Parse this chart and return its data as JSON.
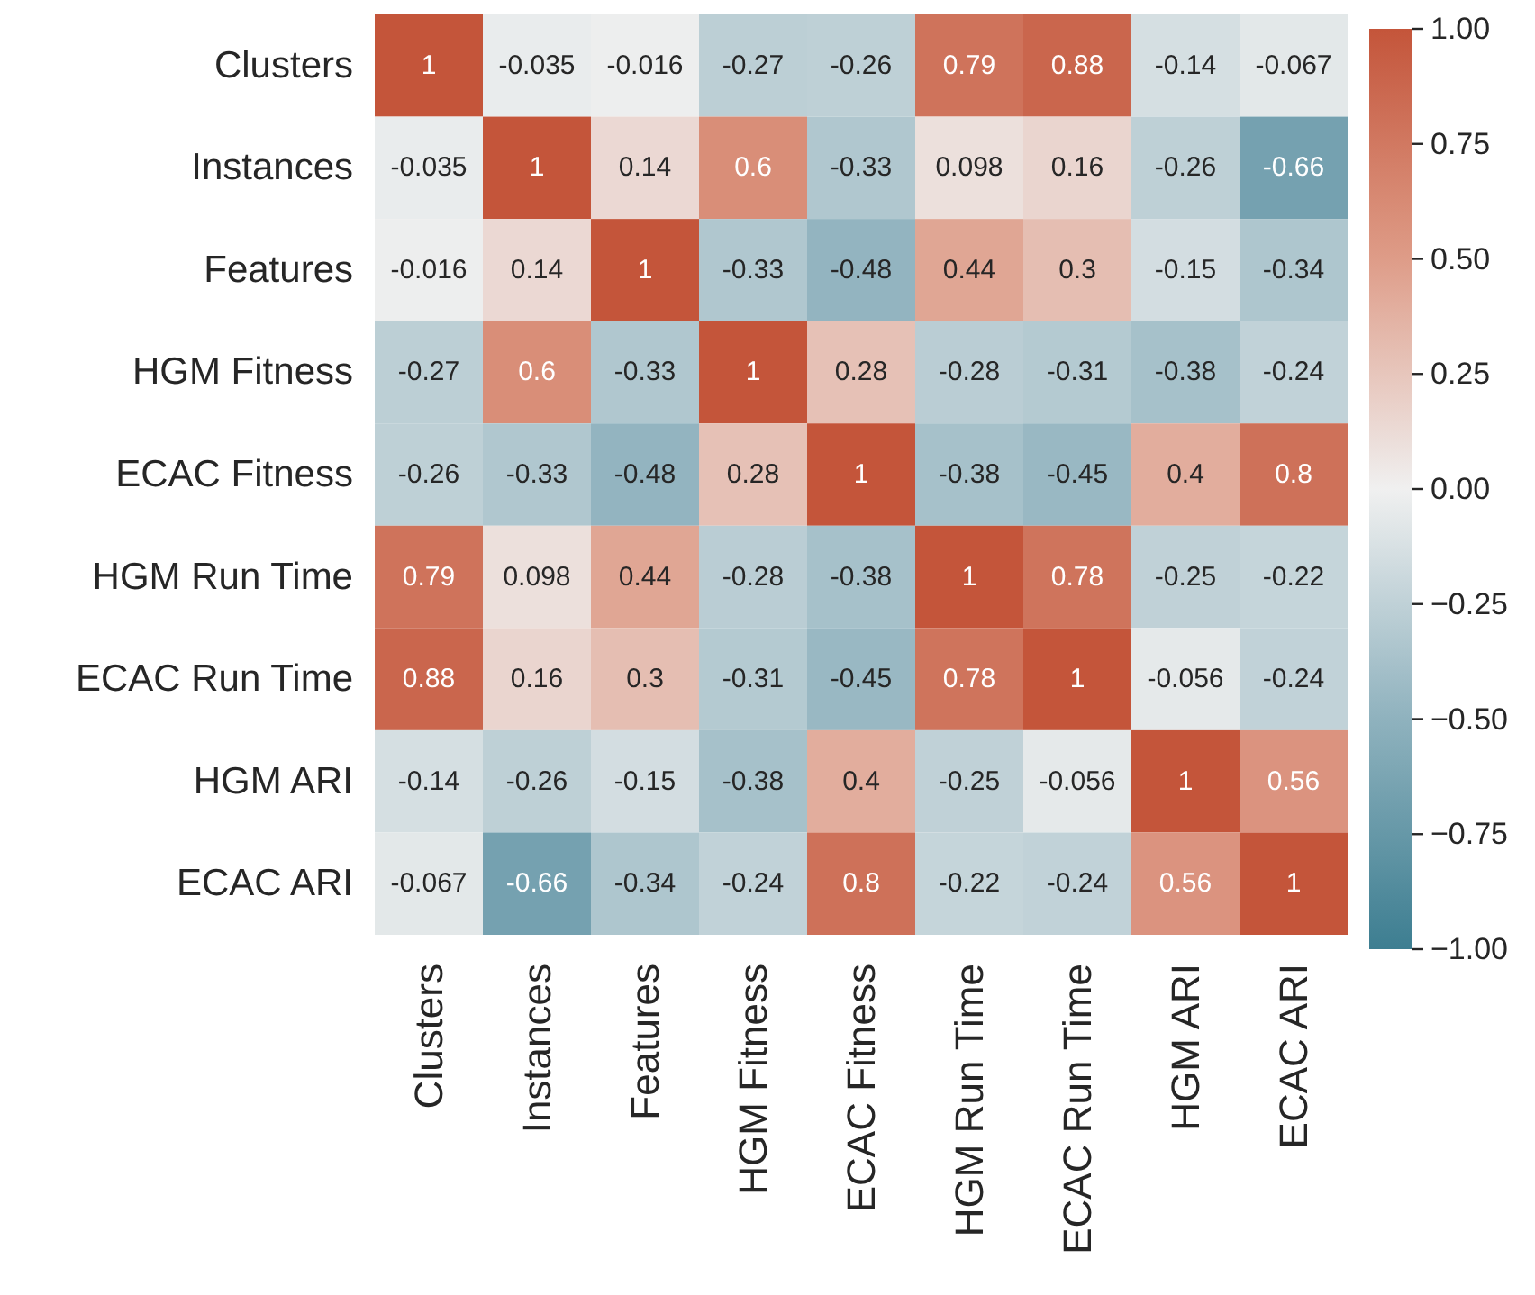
{
  "chart_data": {
    "type": "heatmap",
    "categories": [
      "Clusters",
      "Instances",
      "Features",
      "HGM Fitness",
      "ECAC Fitness",
      "HGM Run Time",
      "ECAC Run Time",
      "HGM ARI",
      "ECAC ARI"
    ],
    "y_categories": [
      "Clusters",
      "Instances",
      "Features",
      "HGM Fitness",
      "ECAC Fitness",
      "HGM Run Time",
      "ECAC Run Time",
      "HGM ARI",
      "ECAC ARI"
    ],
    "cells": [
      [
        1,
        -0.035,
        -0.016,
        -0.27,
        -0.26,
        0.79,
        0.88,
        -0.14,
        -0.067
      ],
      [
        -0.035,
        1,
        0.14,
        0.6,
        -0.33,
        0.098,
        0.16,
        -0.26,
        -0.66
      ],
      [
        -0.016,
        0.14,
        1,
        -0.33,
        -0.48,
        0.44,
        0.3,
        -0.15,
        -0.34
      ],
      [
        -0.27,
        0.6,
        -0.33,
        1,
        0.28,
        -0.28,
        -0.31,
        -0.38,
        -0.24
      ],
      [
        -0.26,
        -0.33,
        -0.48,
        0.28,
        1,
        -0.38,
        -0.45,
        0.4,
        0.8
      ],
      [
        0.79,
        0.098,
        0.44,
        -0.28,
        -0.38,
        1,
        0.78,
        -0.25,
        -0.22
      ],
      [
        0.88,
        0.16,
        0.3,
        -0.31,
        -0.45,
        0.78,
        1,
        -0.056,
        -0.24
      ],
      [
        -0.14,
        -0.26,
        -0.15,
        -0.38,
        0.4,
        -0.25,
        -0.056,
        1,
        0.56
      ],
      [
        -0.067,
        -0.66,
        -0.34,
        -0.24,
        0.8,
        -0.22,
        -0.24,
        0.56,
        1
      ]
    ],
    "data_labels": true,
    "clim": [
      -1,
      1
    ],
    "cticks": [
      {
        "value": 1,
        "label": "1.00"
      },
      {
        "value": 0.75,
        "label": "0.75"
      },
      {
        "value": 0.5,
        "label": "0.50"
      },
      {
        "value": 0.25,
        "label": "0.25"
      },
      {
        "value": 0,
        "label": "0.00"
      },
      {
        "value": -0.25,
        "label": "−0.25"
      },
      {
        "value": -0.5,
        "label": "−0.50"
      },
      {
        "value": -0.75,
        "label": "−0.75"
      },
      {
        "value": -1,
        "label": "−1.00"
      }
    ]
  }
}
